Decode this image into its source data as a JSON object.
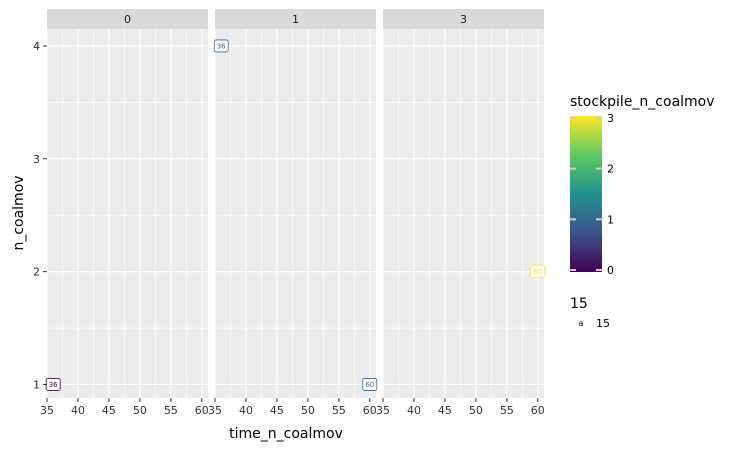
{
  "chart_data": {
    "type": "scatter",
    "geom": "label",
    "xlabel": "time_n_coalmov",
    "ylabel": "n_coalmov",
    "xlim": [
      35,
      61
    ],
    "ylim": [
      0.88,
      4.15
    ],
    "x_ticks": [
      35,
      40,
      45,
      50,
      55,
      60
    ],
    "y_ticks": [
      1,
      2,
      3,
      4
    ],
    "grid": true,
    "facet_by": "stockpile_n_coalmov",
    "facets": [
      "0",
      "1",
      "3"
    ],
    "points": [
      {
        "facet": "0",
        "x": 36,
        "y": 1,
        "color_value": 0,
        "label": "36"
      },
      {
        "facet": "1",
        "x": 36,
        "y": 4,
        "color_value": 1,
        "label": "36"
      },
      {
        "facet": "1",
        "x": 60,
        "y": 1,
        "color_value": 1,
        "label": "60"
      },
      {
        "facet": "3",
        "x": 60,
        "y": 2,
        "color_value": 3,
        "label": "60"
      }
    ],
    "legend": {
      "placement": "right",
      "color_title": "stockpile_n_coalmov",
      "color_ticks": [
        0,
        1,
        2,
        3
      ],
      "color_range": [
        0,
        3
      ],
      "colormap": [
        "#440154",
        "#3b528b",
        "#21918c",
        "#5ec962",
        "#fde725"
      ],
      "size_title": "15",
      "size_key_glyph": "a",
      "size_label": "15"
    }
  }
}
